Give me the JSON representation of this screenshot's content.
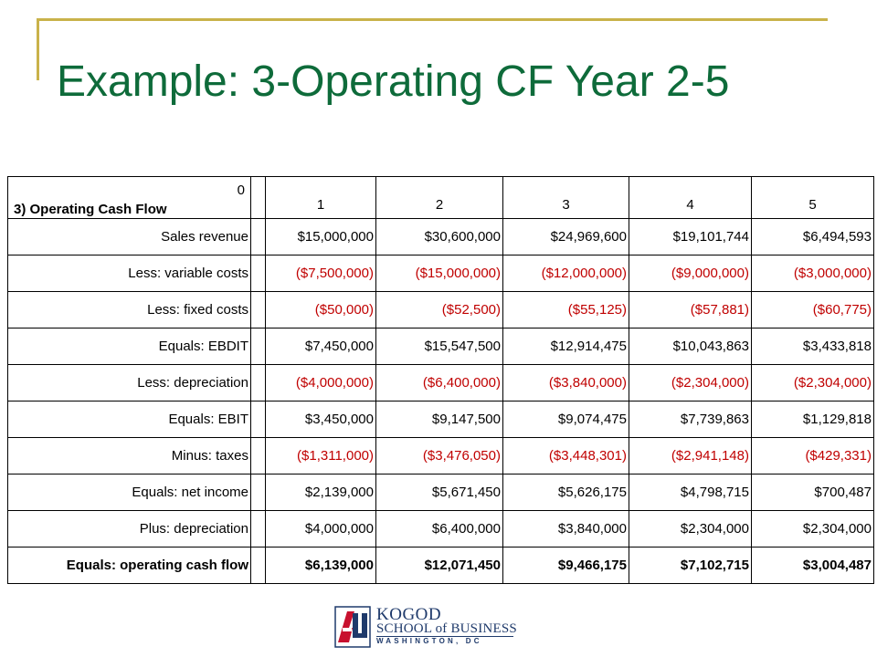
{
  "slide": {
    "title": "Example: 3-Operating CF Year 2-5"
  },
  "table": {
    "header": {
      "year0": "0",
      "label": "3) Operating Cash Flow",
      "years": [
        "1",
        "2",
        "3",
        "4",
        "5"
      ]
    },
    "rows": [
      {
        "label": "Sales revenue",
        "values": [
          "$15,000,000",
          "$30,600,000",
          "$24,969,600",
          "$19,101,744",
          "$6,494,593"
        ],
        "negative": false,
        "bold": false
      },
      {
        "label": "Less: variable costs",
        "values": [
          "($7,500,000)",
          "($15,000,000)",
          "($12,000,000)",
          "($9,000,000)",
          "($3,000,000)"
        ],
        "negative": true,
        "bold": false
      },
      {
        "label": "Less: fixed costs",
        "values": [
          "($50,000)",
          "($52,500)",
          "($55,125)",
          "($57,881)",
          "($60,775)"
        ],
        "negative": true,
        "bold": false
      },
      {
        "label": "Equals: EBDIT",
        "values": [
          "$7,450,000",
          "$15,547,500",
          "$12,914,475",
          "$10,043,863",
          "$3,433,818"
        ],
        "negative": false,
        "bold": false
      },
      {
        "label": "Less: depreciation",
        "values": [
          "($4,000,000)",
          "($6,400,000)",
          "($3,840,000)",
          "($2,304,000)",
          "($2,304,000)"
        ],
        "negative": true,
        "bold": false
      },
      {
        "label": "Equals: EBIT",
        "values": [
          "$3,450,000",
          "$9,147,500",
          "$9,074,475",
          "$7,739,863",
          "$1,129,818"
        ],
        "negative": false,
        "bold": false
      },
      {
        "label": "Minus: taxes",
        "values": [
          "($1,311,000)",
          "($3,476,050)",
          "($3,448,301)",
          "($2,941,148)",
          "($429,331)"
        ],
        "negative": true,
        "bold": false
      },
      {
        "label": "Equals: net income",
        "values": [
          "$2,139,000",
          "$5,671,450",
          "$5,626,175",
          "$4,798,715",
          "$700,487"
        ],
        "negative": false,
        "bold": false
      },
      {
        "label": "Plus: depreciation",
        "values": [
          "$4,000,000",
          "$6,400,000",
          "$3,840,000",
          "$2,304,000",
          "$2,304,000"
        ],
        "negative": false,
        "bold": false
      },
      {
        "label": "Equals: operating cash flow",
        "values": [
          "$6,139,000",
          "$12,071,450",
          "$9,466,175",
          "$7,102,715",
          "$3,004,487"
        ],
        "negative": false,
        "bold": true
      }
    ]
  },
  "logo": {
    "line1": "KOGOD",
    "line2": "SCHOOL of BUSINESS",
    "line3": "WASHINGTON, DC",
    "colors": {
      "red": "#c8102e",
      "navy": "#1f3a6b"
    }
  },
  "colors": {
    "title": "#0e6b3a",
    "accent_line": "#c9b24a",
    "negative": "#c00000"
  }
}
